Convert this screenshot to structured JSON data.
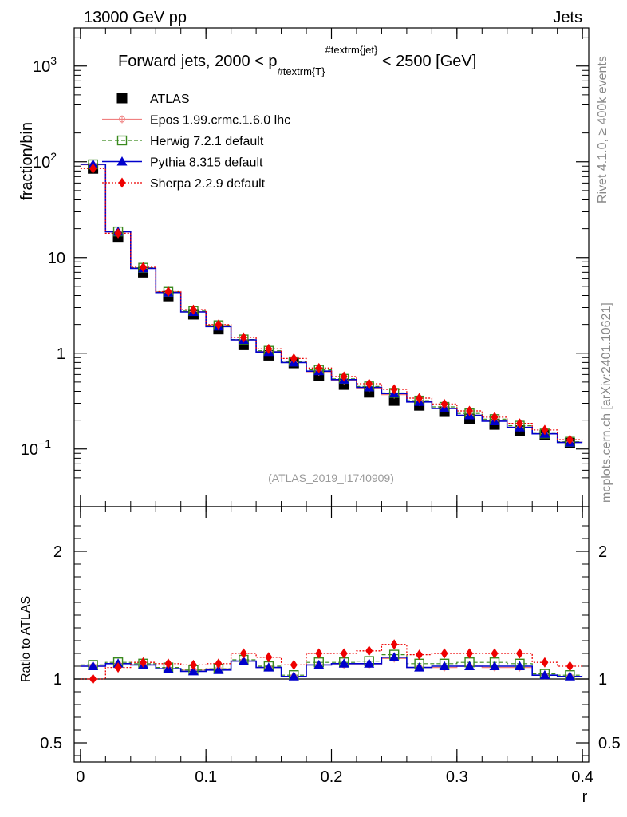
{
  "header": {
    "left": "13000 GeV pp",
    "right": "Jets"
  },
  "side_labels": {
    "rivet": "Rivet 4.1.0, ≥ 400k events",
    "mcplots": "mcplots.cern.ch [arXiv:2401.10621]"
  },
  "watermark": "(ATLAS_2019_I1740909)",
  "colors": {
    "atlas": "#000000",
    "epos": "#f08080",
    "herwig": "#3a8a1e",
    "pythia": "#0000cc",
    "sherpa": "#ee0000"
  },
  "chart_data": [
    {
      "type": "line",
      "panel": "main",
      "title": "Forward jets, 2000 < p_{#textrm{T}}^{#textrm{jet}} < 2500 [GeV]",
      "title_parts": {
        "prefix": "Forward jets, 2000 < p",
        "sub": "#textrm{T}",
        "sup": "#textrm{jet}",
        "suffix": " < 2500 [GeV]"
      },
      "ylabel": "fraction/bin",
      "yscale": "log",
      "ylim": [
        0.025,
        2500
      ],
      "xlim": [
        -0.005,
        0.405
      ],
      "y_ticks": [
        {
          "value": 0.1,
          "base": "10",
          "exp": "−1"
        },
        {
          "value": 1,
          "base": "1",
          "exp": ""
        },
        {
          "value": 10,
          "base": "10",
          "exp": ""
        },
        {
          "value": 100,
          "base": "10",
          "exp": "2"
        },
        {
          "value": 1000,
          "base": "10",
          "exp": "3"
        }
      ],
      "x": [
        0.01,
        0.03,
        0.05,
        0.07,
        0.09,
        0.11,
        0.13,
        0.15,
        0.17,
        0.19,
        0.21,
        0.23,
        0.25,
        0.27,
        0.29,
        0.31,
        0.33,
        0.35,
        0.37,
        0.39
      ],
      "series": [
        {
          "key": "atlas",
          "name": "ATLAS",
          "values": [
            85,
            16.5,
            7.0,
            3.95,
            2.55,
            1.78,
            1.22,
            0.95,
            0.79,
            0.58,
            0.47,
            0.39,
            0.32,
            0.285,
            0.245,
            0.205,
            0.18,
            0.155,
            0.14,
            0.115
          ]
        },
        {
          "key": "epos",
          "name": "Epos 1.99.crmc.1.6.0 lhc",
          "values": [
            93,
            18.5,
            7.7,
            4.3,
            2.72,
            1.93,
            1.38,
            1.04,
            0.8,
            0.64,
            0.52,
            0.43,
            0.37,
            0.31,
            0.265,
            0.225,
            0.195,
            0.168,
            0.144,
            0.118
          ]
        },
        {
          "key": "herwig",
          "name": "Herwig 7.2.1 default",
          "values": [
            94,
            18.7,
            7.8,
            4.38,
            2.76,
            1.96,
            1.39,
            1.06,
            0.82,
            0.67,
            0.54,
            0.45,
            0.385,
            0.32,
            0.275,
            0.235,
            0.205,
            0.175,
            0.145,
            0.119
          ]
        },
        {
          "key": "pythia",
          "name": "Pythia 8.315 default",
          "values": [
            94,
            18.6,
            7.7,
            4.3,
            2.7,
            1.9,
            1.38,
            1.03,
            0.8,
            0.65,
            0.53,
            0.44,
            0.38,
            0.31,
            0.265,
            0.225,
            0.195,
            0.168,
            0.144,
            0.117
          ]
        },
        {
          "key": "sherpa",
          "name": "Sherpa 2.2.9 default",
          "values": [
            85,
            17.9,
            7.9,
            4.4,
            2.85,
            1.99,
            1.46,
            1.11,
            0.88,
            0.7,
            0.57,
            0.48,
            0.42,
            0.34,
            0.295,
            0.25,
            0.215,
            0.185,
            0.158,
            0.125
          ]
        }
      ]
    },
    {
      "type": "line",
      "panel": "ratio",
      "ylabel": "Ratio to ATLAS",
      "xlabel": "r",
      "ylim": [
        0.35,
        2.35
      ],
      "xlim": [
        -0.005,
        0.405
      ],
      "reference_line": 1,
      "y_ticks": [
        0.5,
        1,
        2
      ],
      "x_ticks": [
        0,
        0.1,
        0.2,
        0.3,
        0.4
      ],
      "x": [
        0.01,
        0.03,
        0.05,
        0.07,
        0.09,
        0.11,
        0.13,
        0.15,
        0.17,
        0.19,
        0.21,
        0.23,
        0.25,
        0.27,
        0.29,
        0.31,
        0.33,
        0.35,
        0.37,
        0.39
      ],
      "series": [
        {
          "key": "epos",
          "name": "Epos 1.99.crmc.1.6.0 lhc",
          "values": [
            1.1,
            1.12,
            1.11,
            1.08,
            1.07,
            1.08,
            1.14,
            1.09,
            1.02,
            1.11,
            1.11,
            1.11,
            1.16,
            1.09,
            1.09,
            1.1,
            1.09,
            1.09,
            1.03,
            1.02
          ]
        },
        {
          "key": "herwig",
          "name": "Herwig 7.2.1 default",
          "values": [
            1.11,
            1.13,
            1.12,
            1.09,
            1.07,
            1.08,
            1.15,
            1.1,
            1.03,
            1.13,
            1.13,
            1.14,
            1.19,
            1.12,
            1.12,
            1.13,
            1.13,
            1.12,
            1.04,
            1.03
          ]
        },
        {
          "key": "pythia",
          "name": "Pythia 8.315 default",
          "values": [
            1.1,
            1.12,
            1.11,
            1.08,
            1.06,
            1.07,
            1.14,
            1.09,
            1.02,
            1.11,
            1.12,
            1.12,
            1.17,
            1.09,
            1.1,
            1.1,
            1.1,
            1.1,
            1.03,
            1.02
          ]
        },
        {
          "key": "sherpa",
          "name": "Sherpa 2.2.9 default",
          "values": [
            1.0,
            1.09,
            1.13,
            1.12,
            1.11,
            1.12,
            1.2,
            1.17,
            1.11,
            1.2,
            1.2,
            1.22,
            1.27,
            1.19,
            1.2,
            1.2,
            1.2,
            1.2,
            1.13,
            1.1
          ]
        }
      ]
    }
  ]
}
